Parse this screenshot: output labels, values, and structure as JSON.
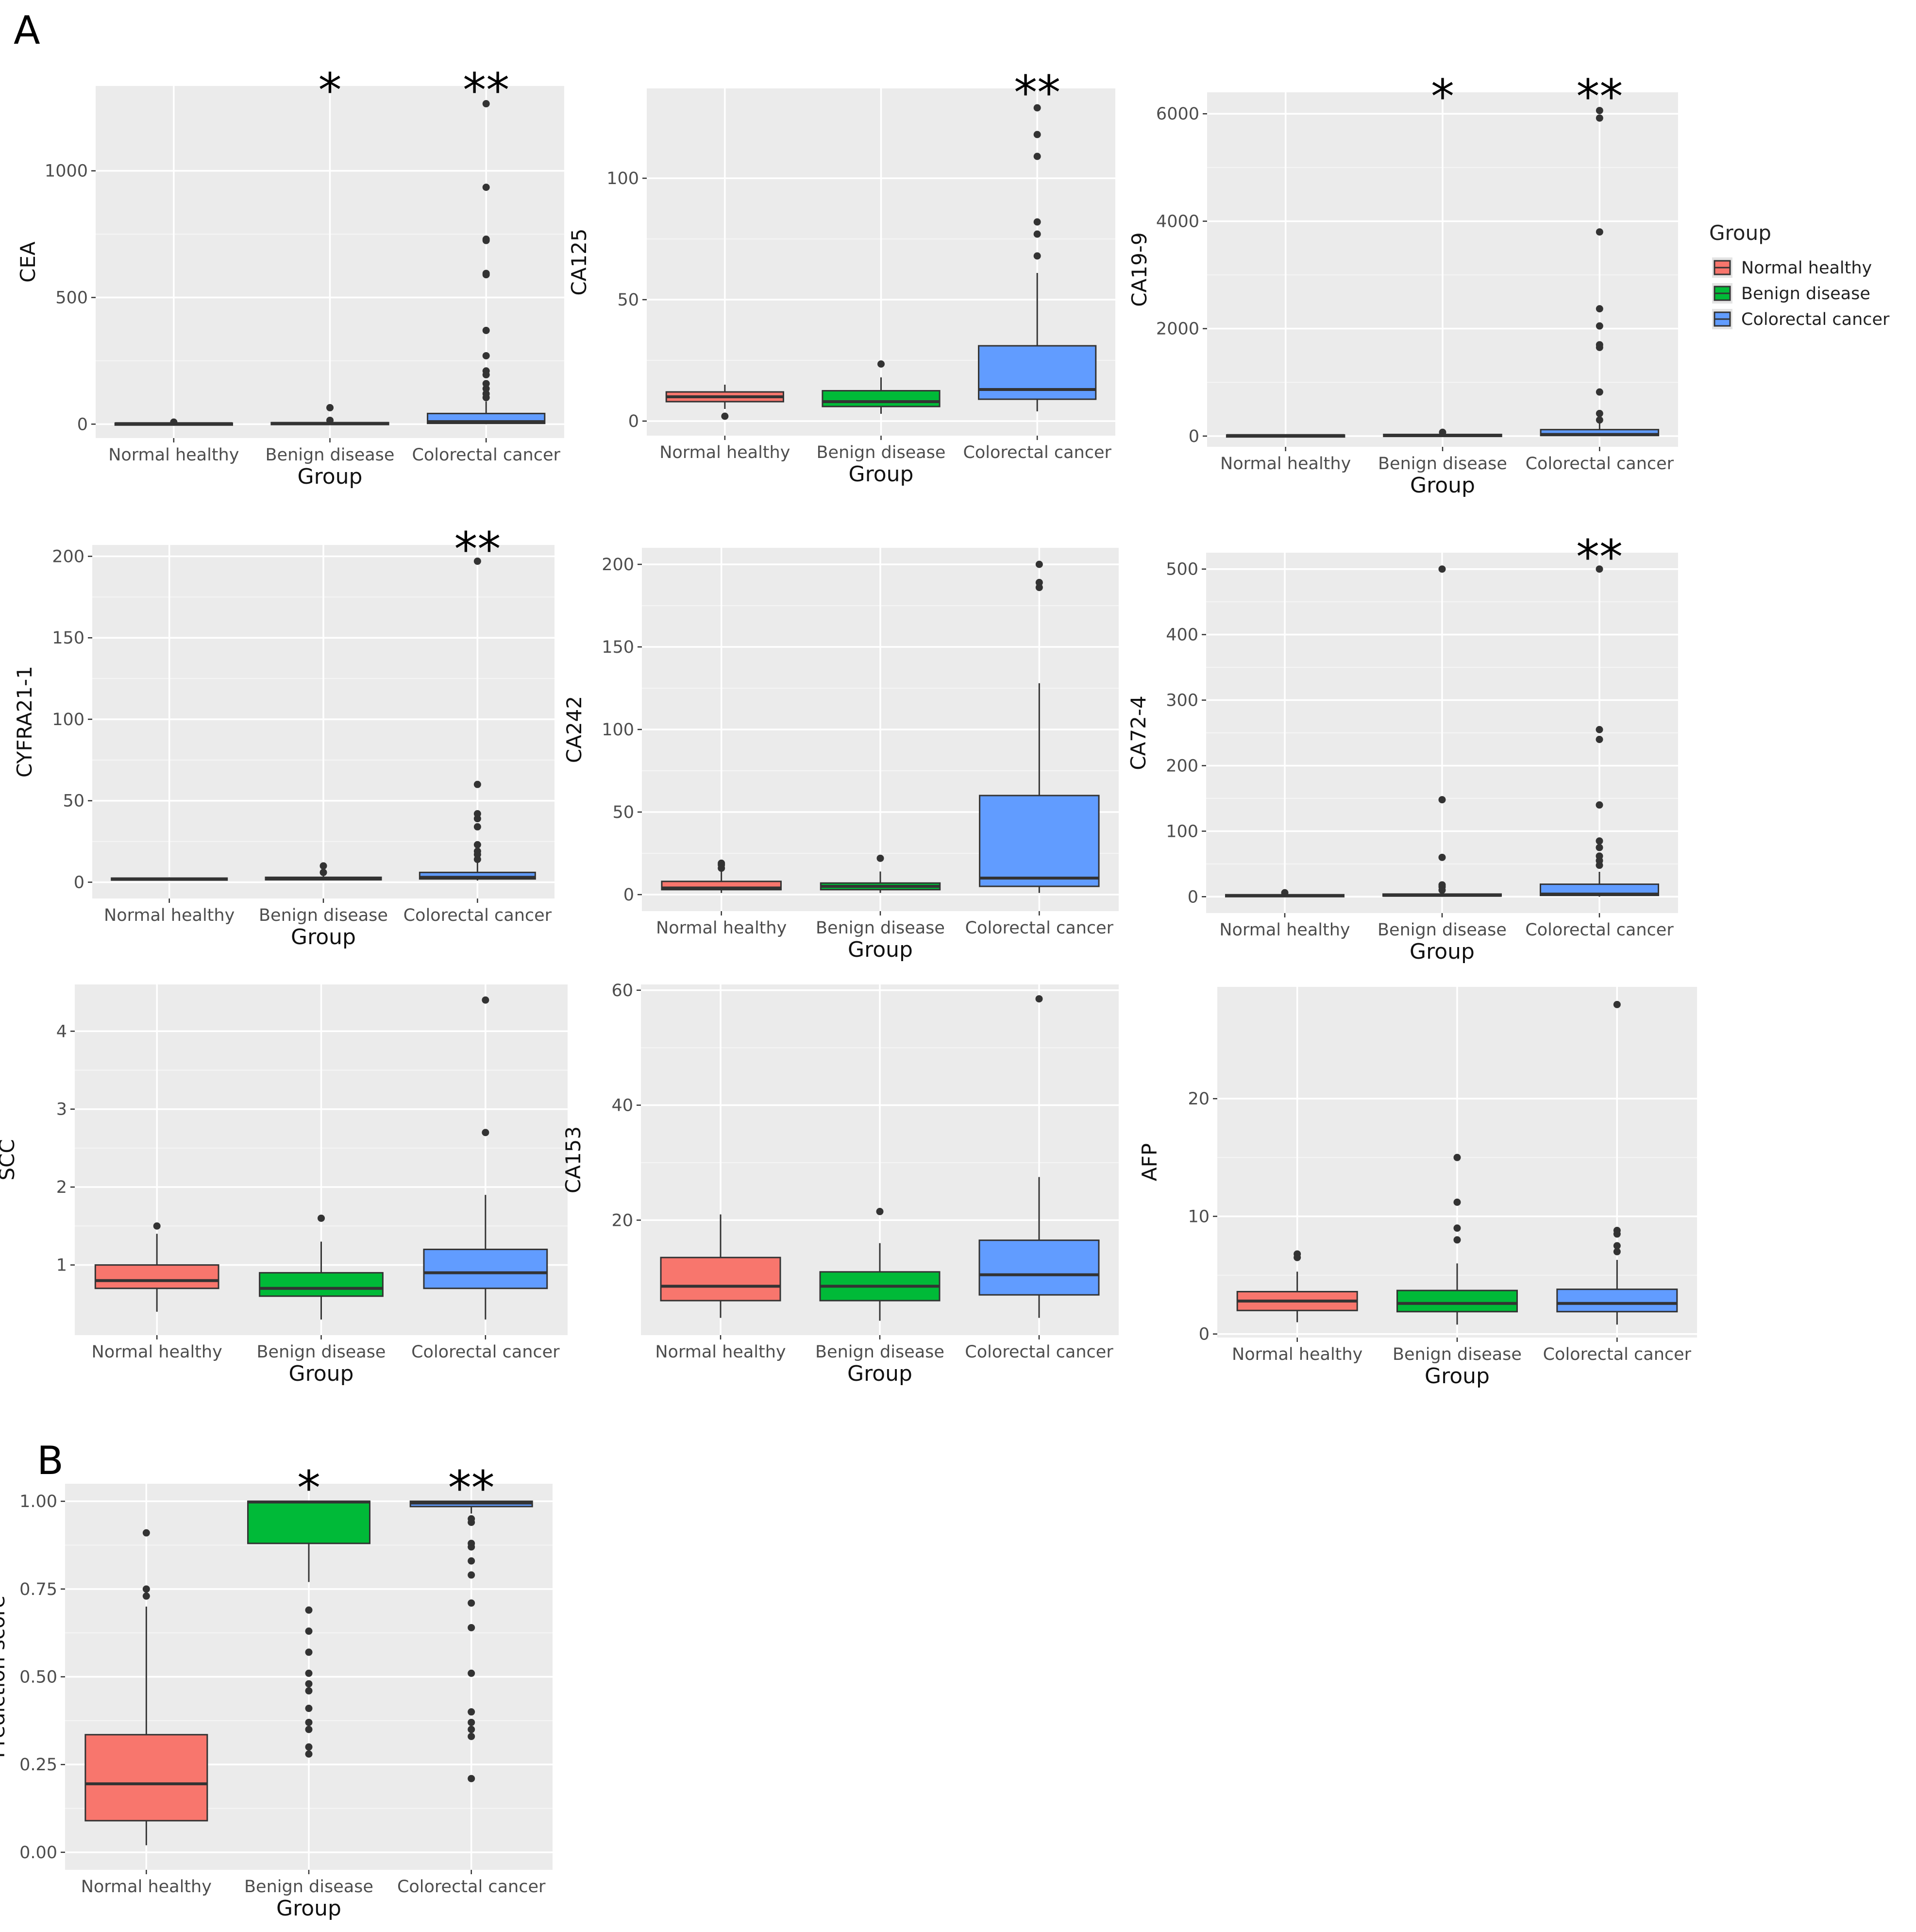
{
  "figure": {
    "panel_a_label": "A",
    "panel_b_label": "B"
  },
  "legend": {
    "title": "Group",
    "items": [
      {
        "label": "Normal healthy",
        "color": "#F8766D"
      },
      {
        "label": "Benign disease",
        "color": "#00BA38"
      },
      {
        "label": "Colorectal cancer",
        "color": "#619CFF"
      }
    ]
  },
  "chart_data": [
    {
      "type": "box",
      "id": "cea",
      "title": "",
      "xlabel": "Group",
      "ylabel": "CEA",
      "categories": [
        "Normal healthy",
        "Benign disease",
        "Colorectal cancer"
      ],
      "ylim": [
        -55,
        1335
      ],
      "yticks": [
        0,
        500,
        1000
      ],
      "ytick_labels": [
        "0",
        "500",
        "1000"
      ],
      "significance": [
        "",
        "*",
        "**"
      ],
      "series": [
        {
          "name": "Normal healthy",
          "color": "#F8766D",
          "q1": 1,
          "median": 2,
          "q3": 4,
          "whisker_low": 0,
          "whisker_high": 6,
          "outliers": [
            8
          ]
        },
        {
          "name": "Benign disease",
          "color": "#00BA38",
          "q1": 1,
          "median": 3,
          "q3": 6,
          "whisker_low": 0,
          "whisker_high": 10,
          "outliers": [
            15,
            65
          ]
        },
        {
          "name": "Colorectal cancer",
          "color": "#619CFF",
          "q1": 3,
          "median": 10,
          "q3": 42,
          "whisker_low": 0,
          "whisker_high": 90,
          "outliers": [
            105,
            120,
            140,
            160,
            195,
            210,
            270,
            370,
            590,
            595,
            725,
            730,
            935,
            1265
          ]
        }
      ]
    },
    {
      "type": "box",
      "id": "ca125",
      "title": "",
      "xlabel": "Group",
      "ylabel": "CA125",
      "categories": [
        "Normal healthy",
        "Benign disease",
        "Colorectal cancer"
      ],
      "ylim": [
        -6,
        137
      ],
      "yticks": [
        0,
        50,
        100
      ],
      "ytick_labels": [
        "0",
        "50",
        "100"
      ],
      "significance": [
        "",
        "",
        "**"
      ],
      "series": [
        {
          "name": "Normal healthy",
          "color": "#F8766D",
          "q1": 8,
          "median": 10,
          "q3": 12,
          "whisker_low": 5,
          "whisker_high": 15,
          "outliers": [
            2
          ]
        },
        {
          "name": "Benign disease",
          "color": "#00BA38",
          "q1": 6,
          "median": 8,
          "q3": 12.5,
          "whisker_low": 3,
          "whisker_high": 18,
          "outliers": [
            23.5
          ]
        },
        {
          "name": "Colorectal cancer",
          "color": "#619CFF",
          "q1": 9,
          "median": 13,
          "q3": 31,
          "whisker_low": 4,
          "whisker_high": 61,
          "outliers": [
            68,
            77,
            82,
            109,
            118,
            129
          ]
        }
      ]
    },
    {
      "type": "box",
      "id": "ca199",
      "title": "",
      "xlabel": "Group",
      "ylabel": "CA19-9",
      "categories": [
        "Normal healthy",
        "Benign disease",
        "Colorectal cancer"
      ],
      "ylim": [
        -200,
        6400
      ],
      "yticks": [
        0,
        2000,
        4000,
        6000
      ],
      "ytick_labels": [
        "0",
        "2000",
        "4000",
        "6000"
      ],
      "significance": [
        "",
        "*",
        "**"
      ],
      "series": [
        {
          "name": "Normal healthy",
          "color": "#F8766D",
          "q1": 5,
          "median": 10,
          "q3": 20,
          "whisker_low": 0,
          "whisker_high": 30,
          "outliers": []
        },
        {
          "name": "Benign disease",
          "color": "#00BA38",
          "q1": 5,
          "median": 15,
          "q3": 30,
          "whisker_low": 0,
          "whisker_high": 50,
          "outliers": [
            70
          ]
        },
        {
          "name": "Colorectal cancer",
          "color": "#619CFF",
          "q1": 10,
          "median": 30,
          "q3": 120,
          "whisker_low": 0,
          "whisker_high": 250,
          "outliers": [
            300,
            420,
            820,
            1650,
            1700,
            2050,
            2370,
            3800,
            5920,
            6060
          ]
        }
      ]
    },
    {
      "type": "box",
      "id": "cyfra",
      "title": "",
      "xlabel": "Group",
      "ylabel": "CYFRA21-1",
      "categories": [
        "Normal healthy",
        "Benign disease",
        "Colorectal cancer"
      ],
      "ylim": [
        -10,
        207
      ],
      "yticks": [
        0,
        50,
        100,
        150,
        200
      ],
      "ytick_labels": [
        "0",
        "50",
        "100",
        "150",
        "200"
      ],
      "significance": [
        "",
        "",
        "**"
      ],
      "series": [
        {
          "name": "Normal healthy",
          "color": "#F8766D",
          "q1": 1.5,
          "median": 2,
          "q3": 2.5,
          "whisker_low": 1,
          "whisker_high": 3,
          "outliers": []
        },
        {
          "name": "Benign disease",
          "color": "#00BA38",
          "q1": 1.5,
          "median": 2,
          "q3": 3,
          "whisker_low": 1,
          "whisker_high": 4,
          "outliers": [
            6,
            10
          ]
        },
        {
          "name": "Colorectal cancer",
          "color": "#619CFF",
          "q1": 2,
          "median": 3,
          "q3": 6,
          "whisker_low": 1,
          "whisker_high": 12,
          "outliers": [
            14,
            17,
            19,
            23,
            34,
            39,
            42,
            60,
            197
          ]
        }
      ]
    },
    {
      "type": "box",
      "id": "ca242",
      "title": "",
      "xlabel": "Group",
      "ylabel": "CA242",
      "categories": [
        "Normal healthy",
        "Benign disease",
        "Colorectal cancer"
      ],
      "ylim": [
        -10,
        210
      ],
      "yticks": [
        0,
        50,
        100,
        150,
        200
      ],
      "ytick_labels": [
        "0",
        "50",
        "100",
        "150",
        "200"
      ],
      "significance": [
        "",
        "",
        ""
      ],
      "series": [
        {
          "name": "Normal healthy",
          "color": "#F8766D",
          "q1": 3,
          "median": 4,
          "q3": 8,
          "whisker_low": 1,
          "whisker_high": 14,
          "outliers": [
            16,
            18,
            19
          ]
        },
        {
          "name": "Benign disease",
          "color": "#00BA38",
          "q1": 3,
          "median": 5,
          "q3": 7,
          "whisker_low": 1,
          "whisker_high": 14,
          "outliers": [
            22
          ]
        },
        {
          "name": "Colorectal cancer",
          "color": "#619CFF",
          "q1": 5,
          "median": 10,
          "q3": 60,
          "whisker_low": 1,
          "whisker_high": 128,
          "outliers": [
            186,
            189,
            200
          ]
        }
      ]
    },
    {
      "type": "box",
      "id": "ca724",
      "title": "",
      "xlabel": "Group",
      "ylabel": "CA72-4",
      "categories": [
        "Normal healthy",
        "Benign disease",
        "Colorectal cancer"
      ],
      "ylim": [
        -25,
        525
      ],
      "yticks": [
        0,
        100,
        200,
        300,
        400,
        500
      ],
      "ytick_labels": [
        "0",
        "100",
        "200",
        "300",
        "400",
        "500"
      ],
      "significance": [
        "",
        "",
        "**"
      ],
      "series": [
        {
          "name": "Normal healthy",
          "color": "#F8766D",
          "q1": 1,
          "median": 1.5,
          "q3": 3,
          "whisker_low": 0,
          "whisker_high": 4,
          "outliers": [
            6
          ]
        },
        {
          "name": "Benign disease",
          "color": "#00BA38",
          "q1": 1,
          "median": 2,
          "q3": 4,
          "whisker_low": 0,
          "whisker_high": 8,
          "outliers": [
            10,
            15,
            18,
            60,
            148,
            500
          ]
        },
        {
          "name": "Colorectal cancer",
          "color": "#619CFF",
          "q1": 2,
          "median": 4,
          "q3": 19,
          "whisker_low": 0,
          "whisker_high": 38,
          "outliers": [
            48,
            55,
            62,
            75,
            85,
            140,
            240,
            255,
            500
          ]
        }
      ]
    },
    {
      "type": "box",
      "id": "scc",
      "title": "",
      "xlabel": "Group",
      "ylabel": "SCC",
      "categories": [
        "Normal healthy",
        "Benign disease",
        "Colorectal cancer"
      ],
      "ylim": [
        0.1,
        4.6
      ],
      "yticks": [
        1,
        2,
        3,
        4
      ],
      "ytick_labels": [
        "1",
        "2",
        "3",
        "4"
      ],
      "significance": [
        "",
        "",
        ""
      ],
      "series": [
        {
          "name": "Normal healthy",
          "color": "#F8766D",
          "q1": 0.7,
          "median": 0.8,
          "q3": 1.0,
          "whisker_low": 0.4,
          "whisker_high": 1.4,
          "outliers": [
            1.5
          ]
        },
        {
          "name": "Benign disease",
          "color": "#00BA38",
          "q1": 0.6,
          "median": 0.7,
          "q3": 0.9,
          "whisker_low": 0.3,
          "whisker_high": 1.3,
          "outliers": [
            1.6
          ]
        },
        {
          "name": "Colorectal cancer",
          "color": "#619CFF",
          "q1": 0.7,
          "median": 0.9,
          "q3": 1.2,
          "whisker_low": 0.3,
          "whisker_high": 1.9,
          "outliers": [
            2.7,
            4.4
          ]
        }
      ]
    },
    {
      "type": "box",
      "id": "ca153",
      "title": "",
      "xlabel": "Group",
      "ylabel": "CA153",
      "categories": [
        "Normal healthy",
        "Benign disease",
        "Colorectal cancer"
      ],
      "ylim": [
        0,
        61
      ],
      "yticks": [
        20,
        40,
        60
      ],
      "ytick_labels": [
        "20",
        "40",
        "60"
      ],
      "significance": [
        "",
        "",
        ""
      ],
      "series": [
        {
          "name": "Normal healthy",
          "color": "#F8766D",
          "q1": 6,
          "median": 8.5,
          "q3": 13.5,
          "whisker_low": 3,
          "whisker_high": 21,
          "outliers": []
        },
        {
          "name": "Benign disease",
          "color": "#00BA38",
          "q1": 6,
          "median": 8.5,
          "q3": 11,
          "whisker_low": 2.5,
          "whisker_high": 16,
          "outliers": [
            21.5
          ]
        },
        {
          "name": "Colorectal cancer",
          "color": "#619CFF",
          "q1": 7,
          "median": 10.5,
          "q3": 16.5,
          "whisker_low": 3,
          "whisker_high": 27.5,
          "outliers": [
            58.5
          ]
        }
      ]
    },
    {
      "type": "box",
      "id": "afp",
      "title": "",
      "xlabel": "Group",
      "ylabel": "AFP",
      "categories": [
        "Normal healthy",
        "Benign disease",
        "Colorectal cancer"
      ],
      "ylim": [
        -0.3,
        29.5
      ],
      "yticks": [
        0,
        10,
        20
      ],
      "ytick_labels": [
        "0",
        "10",
        "20"
      ],
      "significance": [
        "",
        "",
        ""
      ],
      "series": [
        {
          "name": "Normal healthy",
          "color": "#F8766D",
          "q1": 2,
          "median": 2.8,
          "q3": 3.6,
          "whisker_low": 1,
          "whisker_high": 5.3,
          "outliers": [
            6.5,
            6.8
          ]
        },
        {
          "name": "Benign disease",
          "color": "#00BA38",
          "q1": 1.9,
          "median": 2.6,
          "q3": 3.7,
          "whisker_low": 0.8,
          "whisker_high": 6,
          "outliers": [
            8,
            9,
            11.2,
            15
          ]
        },
        {
          "name": "Colorectal cancer",
          "color": "#619CFF",
          "q1": 1.9,
          "median": 2.6,
          "q3": 3.8,
          "whisker_low": 0.8,
          "whisker_high": 6.3,
          "outliers": [
            7,
            7.5,
            8.5,
            8.8,
            28
          ]
        }
      ]
    },
    {
      "type": "box",
      "id": "prediction",
      "title": "",
      "xlabel": "Group",
      "ylabel": "Prediction score",
      "categories": [
        "Normal healthy",
        "Benign disease",
        "Colorectal cancer"
      ],
      "ylim": [
        -0.05,
        1.05
      ],
      "yticks": [
        0,
        0.25,
        0.5,
        0.75,
        1.0
      ],
      "ytick_labels": [
        "0.00",
        "0.25",
        "0.50",
        "0.75",
        "1.00"
      ],
      "significance": [
        "",
        "*",
        "**"
      ],
      "series": [
        {
          "name": "Normal healthy",
          "color": "#F8766D",
          "q1": 0.09,
          "median": 0.195,
          "q3": 0.335,
          "whisker_low": 0.02,
          "whisker_high": 0.7,
          "outliers": [
            0.73,
            0.75,
            0.91
          ]
        },
        {
          "name": "Benign disease",
          "color": "#00BA38",
          "q1": 0.88,
          "median": 0.998,
          "q3": 1.0,
          "whisker_low": 0.77,
          "whisker_high": 1.0,
          "outliers": [
            0.28,
            0.3,
            0.35,
            0.37,
            0.41,
            0.46,
            0.48,
            0.51,
            0.57,
            0.63,
            0.69
          ]
        },
        {
          "name": "Colorectal cancer",
          "color": "#619CFF",
          "q1": 0.985,
          "median": 0.995,
          "q3": 1.0,
          "whisker_low": 0.965,
          "whisker_high": 1.0,
          "outliers": [
            0.21,
            0.33,
            0.35,
            0.37,
            0.4,
            0.51,
            0.64,
            0.71,
            0.79,
            0.83,
            0.87,
            0.88,
            0.94,
            0.95
          ]
        }
      ]
    }
  ]
}
